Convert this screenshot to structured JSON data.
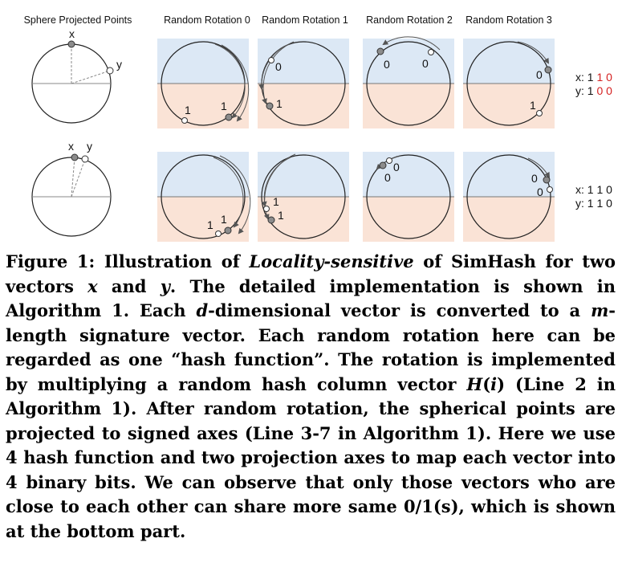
{
  "column_headers": [
    "Sphere Projected Points",
    "Random Rotation 0",
    "Random Rotation 1",
    "Random Rotation 2",
    "Random Rotation 3"
  ],
  "point_labels": {
    "x": "x",
    "y": "y"
  },
  "rows": [
    {
      "name": "far-vectors",
      "signature_x_prefix": "x: 1 ",
      "signature_x_bits": "1 0",
      "signature_y_prefix": "y: 1 ",
      "signature_y_bits": "0 0",
      "differing_bits_color": "#d42020",
      "rotations": [
        {
          "labels": [
            "1",
            "1"
          ]
        },
        {
          "labels": [
            "0",
            "1"
          ]
        },
        {
          "labels": [
            "0",
            "0"
          ]
        },
        {
          "labels": [
            "0",
            "1"
          ]
        }
      ]
    },
    {
      "name": "close-vectors",
      "signature_x_prefix": "x: 1 1 0",
      "signature_y_prefix": "y: 1 1 0",
      "rotations": [
        {
          "labels": [
            "1",
            "1"
          ]
        },
        {
          "labels": [
            "1",
            "1"
          ]
        },
        {
          "labels": [
            "0",
            "0"
          ]
        },
        {
          "labels": [
            "0",
            "0"
          ]
        }
      ]
    }
  ],
  "colors": {
    "upper_half": "#dce8f5",
    "lower_half": "#fae3d6",
    "point_x": "#8c8c8c",
    "point_y": "#ffffff",
    "line": "#555555"
  },
  "caption": {
    "p1": "Figure 1: Illustration of ",
    "em1": "Locality-sensitive",
    "p2": " of SimHash for two vectors ",
    "em_x": "x",
    "p3": " and ",
    "em_y": "y",
    "p4": ". The detailed implementation is shown in Algorithm 1. Each ",
    "em_d": "d",
    "p5": "-dimensional vector is converted to a ",
    "em_m": "m",
    "p6": "-length signature vector. Each random rotation here can be regarded as one “hash function”. The rotation is implemented by multiplying a random hash column vector ",
    "em_h": "H",
    "p7": "(",
    "em_i": "i",
    "p8": ") (Line 2 in Algorithm 1). After random rotation, the spherical points are projected to signed axes (Line 3-7 in Algorithm 1). Here we use 4 hash function and two projection axes to map each vector into 4 binary bits. We can observe that only those vectors who are close to each other can share more same 0/1(s), which is shown at the bottom part."
  }
}
